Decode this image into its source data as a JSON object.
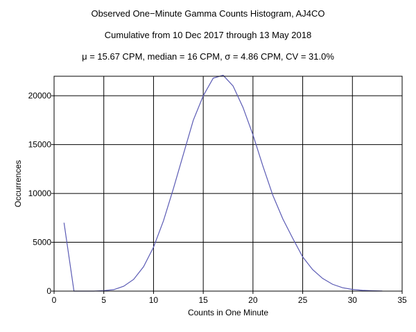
{
  "header": {
    "title": "Observed One−Minute Gamma Counts Histogram, AJ4CO",
    "subtitle": "Cumulative from 10 Dec 2017 through 13 May 2018",
    "stats": "μ = 15.67 CPM,   median = 16 CPM,   σ = 4.86 CPM,   CV = 31.0%"
  },
  "chart_data": {
    "type": "line",
    "title": "Observed One−Minute Gamma Counts Histogram, AJ4CO",
    "xlabel": "Counts in One Minute",
    "ylabel": "Occurrences",
    "xlim": [
      0,
      35
    ],
    "ylim": [
      0,
      22000
    ],
    "grid": true,
    "x_ticks": [
      0,
      5,
      10,
      15,
      20,
      25,
      30,
      35
    ],
    "y_ticks": [
      0,
      5000,
      10000,
      15000,
      20000
    ],
    "line_color": "#5a5ab4",
    "series": [
      {
        "x": [
          1,
          2,
          3,
          4,
          5,
          6,
          7,
          8,
          9,
          10,
          11,
          12,
          13,
          14,
          15,
          16,
          17,
          18,
          19,
          20,
          21,
          22,
          23,
          24,
          25,
          26,
          27,
          28,
          29,
          30,
          31,
          32,
          33
        ],
        "values": [
          7000,
          0,
          0,
          0,
          50,
          150,
          500,
          1200,
          2500,
          4500,
          7200,
          10500,
          14000,
          17500,
          20000,
          21800,
          22100,
          21000,
          18800,
          16000,
          12800,
          9800,
          7400,
          5400,
          3500,
          2200,
          1300,
          700,
          350,
          170,
          80,
          40,
          10
        ]
      }
    ]
  }
}
